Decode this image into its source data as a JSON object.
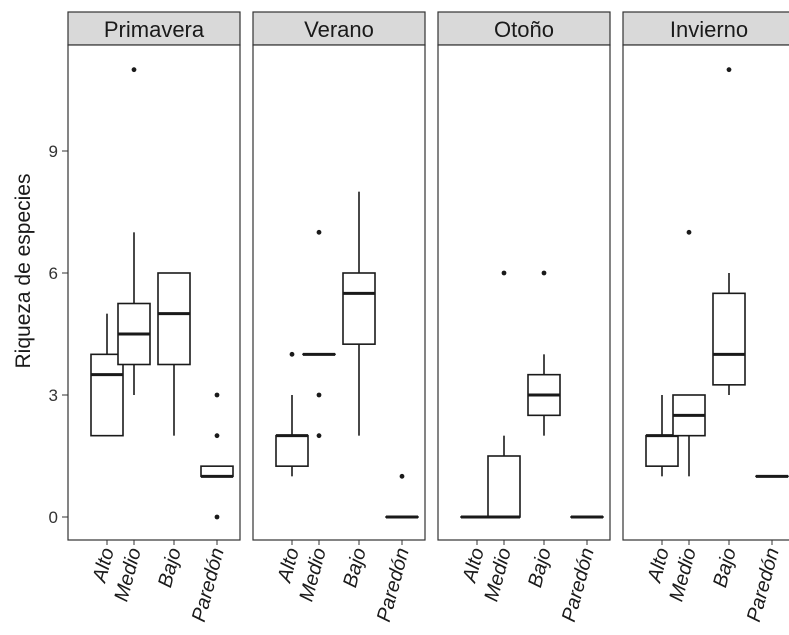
{
  "chart_data": {
    "type": "boxplot",
    "ylabel": "Riqueza de especies",
    "ylim": [
      -0.6,
      11.8
    ],
    "yticks": [
      0,
      3,
      6,
      9
    ],
    "categories": [
      "Alto",
      "Medio",
      "Bajo",
      "Paredón"
    ],
    "facets": [
      {
        "name": "Primavera",
        "boxes": [
          {
            "category": "Alto",
            "min": 2,
            "q1": 2,
            "median": 3.5,
            "q3": 4,
            "max": 5,
            "outliers": []
          },
          {
            "category": "Medio",
            "min": 3,
            "q1": 3.75,
            "median": 4.5,
            "q3": 5.25,
            "max": 7,
            "outliers": [
              11
            ]
          },
          {
            "category": "Bajo",
            "min": 2,
            "q1": 3.75,
            "median": 5,
            "q3": 6,
            "max": 6,
            "outliers": []
          },
          {
            "category": "Paredón",
            "min": 1,
            "q1": 1,
            "median": 1,
            "q3": 1.25,
            "max": 1.25,
            "outliers": [
              0,
              2,
              3
            ]
          }
        ]
      },
      {
        "name": "Verano",
        "boxes": [
          {
            "category": "Alto",
            "min": 1,
            "q1": 1.25,
            "median": 2,
            "q3": 2,
            "max": 3,
            "outliers": [
              4
            ]
          },
          {
            "category": "Medio",
            "min": 4,
            "q1": 4,
            "median": 4,
            "q3": 4,
            "max": 4,
            "outliers": [
              2,
              3,
              7
            ]
          },
          {
            "category": "Bajo",
            "min": 2,
            "q1": 4.25,
            "median": 5.5,
            "q3": 6,
            "max": 8,
            "outliers": []
          },
          {
            "category": "Paredón",
            "min": 0,
            "q1": 0,
            "median": 0,
            "q3": 0,
            "max": 0,
            "outliers": [
              1
            ]
          }
        ]
      },
      {
        "name": "Otoño",
        "boxes": [
          {
            "category": "Alto",
            "min": 0,
            "q1": 0,
            "median": 0,
            "q3": 0,
            "max": 0,
            "outliers": []
          },
          {
            "category": "Medio",
            "min": 0,
            "q1": 0,
            "median": 0,
            "q3": 1.5,
            "max": 2,
            "outliers": [
              6
            ]
          },
          {
            "category": "Bajo",
            "min": 2,
            "q1": 2.5,
            "median": 3,
            "q3": 3.5,
            "max": 4,
            "outliers": [
              6
            ]
          },
          {
            "category": "Paredón",
            "min": 0,
            "q1": 0,
            "median": 0,
            "q3": 0,
            "max": 0,
            "outliers": []
          }
        ]
      },
      {
        "name": "Invierno",
        "boxes": [
          {
            "category": "Alto",
            "min": 1,
            "q1": 1.25,
            "median": 2,
            "q3": 2,
            "max": 3,
            "outliers": []
          },
          {
            "category": "Medio",
            "min": 1,
            "q1": 2,
            "median": 2.5,
            "q3": 3,
            "max": 3,
            "outliers": [
              7
            ]
          },
          {
            "category": "Bajo",
            "min": 3,
            "q1": 3.25,
            "median": 4,
            "q3": 5.5,
            "max": 6,
            "outliers": [
              11
            ]
          },
          {
            "category": "Paredón",
            "min": 1,
            "q1": 1,
            "median": 1,
            "q3": 1,
            "max": 1,
            "outliers": []
          }
        ]
      }
    ]
  }
}
